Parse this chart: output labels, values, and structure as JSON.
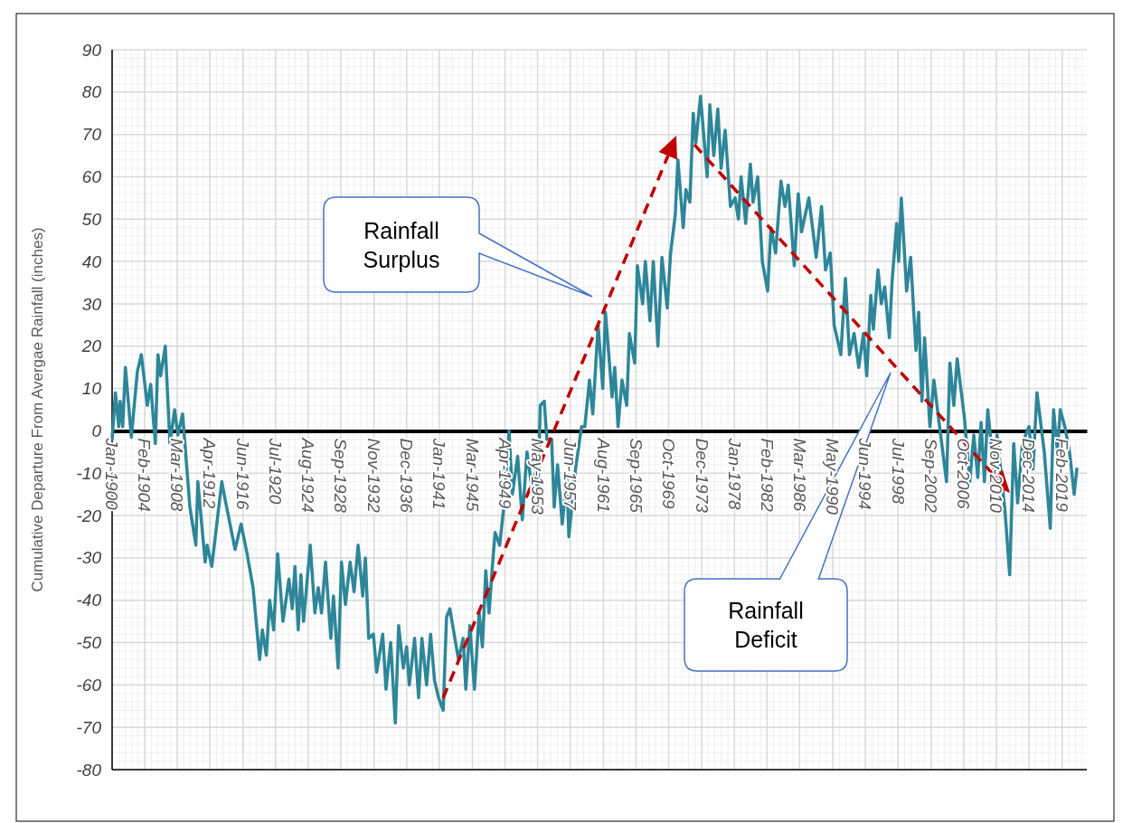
{
  "chart_data": {
    "type": "line",
    "ylabel": "Cumulative Departure From Avergae Rainfall (inches)",
    "annotations": [
      "Rainfall Surplus",
      "Rainfall Deficit"
    ],
    "xlim": [
      "1900-01",
      "2022-03"
    ],
    "ylim": [
      -80,
      90
    ],
    "yticks": [
      -80,
      -70,
      -60,
      -50,
      -40,
      -30,
      -20,
      -10,
      0,
      10,
      20,
      30,
      40,
      50,
      60,
      70,
      80,
      90
    ],
    "xticks": [
      {
        "value": "1900-01",
        "label": "Jan-1900"
      },
      {
        "value": "1904-02",
        "label": "Feb-1904"
      },
      {
        "value": "1908-03",
        "label": "Mar-1908"
      },
      {
        "value": "1912-04",
        "label": "Apr-1912"
      },
      {
        "value": "1916-06",
        "label": "Jun-1916"
      },
      {
        "value": "1920-07",
        "label": "Jul-1920"
      },
      {
        "value": "1924-08",
        "label": "Aug-1924"
      },
      {
        "value": "1928-09",
        "label": "Sep-1928"
      },
      {
        "value": "1932-11",
        "label": "Nov-1932"
      },
      {
        "value": "1936-12",
        "label": "Dec-1936"
      },
      {
        "value": "1941-01",
        "label": "Jan-1941"
      },
      {
        "value": "1945-03",
        "label": "Mar-1945"
      },
      {
        "value": "1949-04",
        "label": "Apr-1949"
      },
      {
        "value": "1953-05",
        "label": "May-1953"
      },
      {
        "value": "1957-06",
        "label": "Jun-1957"
      },
      {
        "value": "1961-08",
        "label": "Aug-1961"
      },
      {
        "value": "1965-09",
        "label": "Sep-1965"
      },
      {
        "value": "1969-10",
        "label": "Oct-1969"
      },
      {
        "value": "1973-12",
        "label": "Dec-1973"
      },
      {
        "value": "1978-01",
        "label": "Jan-1978"
      },
      {
        "value": "1982-02",
        "label": "Feb-1982"
      },
      {
        "value": "1986-03",
        "label": "Mar-1986"
      },
      {
        "value": "1990-05",
        "label": "May-1990"
      },
      {
        "value": "1994-06",
        "label": "Jun-1994"
      },
      {
        "value": "1998-07",
        "label": "Jul-1998"
      },
      {
        "value": "2002-09",
        "label": "Sep-2002"
      },
      {
        "value": "2006-10",
        "label": "Oct-2006"
      },
      {
        "value": "2010-11",
        "label": "Nov-2010"
      },
      {
        "value": "2014-12",
        "label": "Dec-2014"
      },
      {
        "value": "2019-02",
        "label": "Feb-2019"
      }
    ],
    "grid": true,
    "series": [
      {
        "color": "#2e8699",
        "x": [
          "1900-01",
          "1900-06",
          "1900-11",
          "1901-01",
          "1901-05",
          "1901-09",
          "1902-06",
          "1903-03",
          "1903-09",
          "1904-06",
          "1904-11",
          "1905-06",
          "1905-10",
          "1906-02",
          "1906-09",
          "1907-04",
          "1907-11",
          "1908-04",
          "1908-11",
          "1909-10",
          "1910-07",
          "1910-10",
          "1911-09",
          "1911-12",
          "1912-07",
          "1913-10",
          "1914-04",
          "1915-06",
          "1916-03",
          "1916-12",
          "1917-09",
          "1918-07",
          "1918-11",
          "1919-05",
          "1919-10",
          "1920-04",
          "1920-10",
          "1921-06",
          "1922-03",
          "1922-08",
          "1922-12",
          "1923-05",
          "1923-09",
          "1924-01",
          "1924-11",
          "1925-06",
          "1925-11",
          "1926-04",
          "1926-10",
          "1927-06",
          "1927-10",
          "1928-05",
          "1928-10",
          "1929-04",
          "1929-11",
          "1930-05",
          "1930-11",
          "1931-06",
          "1931-10",
          "1932-03",
          "1932-10",
          "1933-03",
          "1933-12",
          "1934-05",
          "1934-12",
          "1935-07",
          "1935-12",
          "1936-07",
          "1936-12",
          "1937-04",
          "1937-12",
          "1938-06",
          "1938-11",
          "1939-06",
          "1939-12",
          "1940-06",
          "1940-12",
          "1941-07",
          "1941-12",
          "1942-05",
          "1943-06",
          "1944-01",
          "1944-05",
          "1944-11",
          "1945-06",
          "1946-01",
          "1946-06",
          "1946-11",
          "1947-04",
          "1947-09",
          "1948-01",
          "1948-08",
          "1949-02",
          "1949-10",
          "1950-03",
          "1950-11",
          "1951-06",
          "1952-01",
          "1952-08",
          "1953-03",
          "1953-05",
          "1953-09",
          "1954-03",
          "1954-07",
          "1955-02",
          "1955-06",
          "1955-11",
          "1956-06",
          "1957-01",
          "1957-04",
          "1958-02",
          "1958-11",
          "1959-04",
          "1959-11",
          "1960-04",
          "1960-12",
          "1961-07",
          "1961-11",
          "1962-09",
          "1963-01",
          "1963-06",
          "1963-12",
          "1964-07",
          "1964-11",
          "1965-07",
          "1965-11",
          "1966-07",
          "1966-11",
          "1967-06",
          "1967-11",
          "1968-06",
          "1968-12",
          "1969-08",
          "1970-01",
          "1970-08",
          "1970-12",
          "1971-08",
          "1971-12",
          "1972-06",
          "1972-11",
          "1973-03",
          "1973-10",
          "1974-08",
          "1974-12",
          "1975-06",
          "1975-12",
          "1976-05",
          "1976-11",
          "1977-07",
          "1978-02",
          "1978-07",
          "1978-11",
          "1979-06",
          "1980-01",
          "1980-05",
          "1980-12",
          "1981-07",
          "1982-03",
          "1982-08",
          "1983-03",
          "1983-11",
          "1984-05",
          "1984-10",
          "1985-07",
          "1986-01",
          "1986-06",
          "1987-05",
          "1988-04",
          "1988-12",
          "1989-06",
          "1990-01",
          "1990-07",
          "1991-05",
          "1991-12",
          "1992-06",
          "1993-01",
          "1993-08",
          "1994-03",
          "1994-08",
          "1995-02",
          "1995-06",
          "1996-01",
          "1996-06",
          "1996-11",
          "1997-06",
          "1997-10",
          "1998-05",
          "1998-08",
          "1998-12",
          "1999-08",
          "2000-02",
          "2000-10",
          "2001-02",
          "2001-07",
          "2001-11",
          "2002-07",
          "2003-01",
          "2003-08",
          "2004-08",
          "2005-01",
          "2005-07",
          "2005-12",
          "2006-11",
          "2007-07",
          "2008-01",
          "2008-07",
          "2008-12",
          "2009-05",
          "2009-10",
          "2010-07",
          "2010-12",
          "2011-12",
          "2012-07",
          "2013-01",
          "2013-07",
          "2014-02",
          "2014-12",
          "2015-06",
          "2015-12",
          "2016-11",
          "2017-08",
          "2018-01",
          "2018-07",
          "2018-11",
          "2019-06",
          "2020-01",
          "2020-08",
          "2020-12"
        ],
        "values": [
          -2,
          9,
          1,
          7,
          1,
          15,
          -1.5,
          14,
          18,
          6,
          11,
          -3,
          18,
          13,
          20,
          -3,
          5,
          -1,
          4,
          -18,
          -27,
          -12,
          -31,
          -27,
          -32,
          -12,
          -17,
          -28,
          -22,
          -29,
          -37,
          -54,
          -47,
          -53,
          -40,
          -47,
          -29,
          -45,
          -35,
          -42,
          -32,
          -47,
          -34,
          -45,
          -27,
          -43,
          -37,
          -43,
          -31,
          -49,
          -39,
          -56,
          -31,
          -41,
          -31,
          -38,
          -27,
          -39,
          -30,
          -49,
          -48,
          -57,
          -48,
          -61,
          -50,
          -69,
          -46,
          -56,
          -51,
          -60,
          -49,
          -63,
          -49,
          -60,
          -48,
          -59,
          -63,
          -66,
          -44,
          -42,
          -54,
          -49,
          -61,
          -46,
          -61,
          -43,
          -51,
          -33,
          -43,
          -32,
          -24,
          -27,
          -18,
          0,
          -15,
          -6,
          -21,
          -5,
          -13,
          -9,
          -18,
          6,
          7,
          -2,
          -2,
          -18,
          -8,
          -22,
          -11,
          -25,
          -9,
          1,
          1,
          12,
          4,
          25,
          10,
          28,
          8,
          15,
          1,
          12,
          6,
          23,
          16,
          39,
          30,
          40,
          26,
          40,
          20,
          41,
          29,
          42,
          51,
          64,
          48,
          57,
          54,
          75,
          68,
          79,
          60,
          77,
          65,
          76,
          62,
          71,
          53,
          55,
          50,
          60,
          49,
          63,
          54,
          60,
          40,
          33,
          48,
          42,
          59,
          53,
          58,
          39,
          56,
          47,
          55,
          41,
          53,
          38,
          42,
          25,
          18,
          36,
          18,
          23,
          15,
          23,
          13,
          32,
          24,
          38,
          30,
          34,
          22,
          35,
          49,
          40,
          55,
          33,
          41,
          19,
          28,
          7,
          22,
          1,
          12,
          3,
          -12,
          16,
          6,
          17,
          3,
          -12,
          -1,
          -11,
          2,
          -12,
          5,
          -9,
          -1,
          -19,
          -34,
          -3,
          -17,
          -3,
          1,
          -9,
          9,
          -5,
          -23,
          5,
          -5,
          5,
          1,
          -5,
          -15,
          -9
        ]
      }
    ]
  }
}
